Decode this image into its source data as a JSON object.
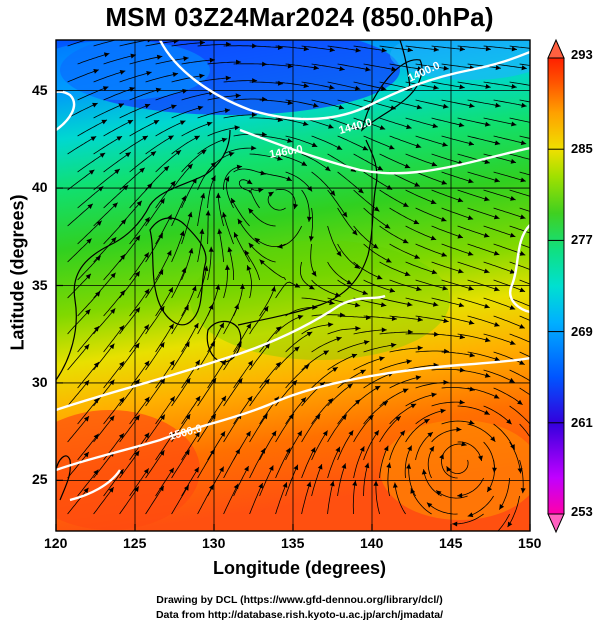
{
  "title": "MSM 03Z24Mar2024 (850.0hPa)",
  "xlabel": "Longitude (degrees)",
  "ylabel": "Latitude  (degrees)",
  "credits": {
    "line1": "Drawing by DCL (https://www.gfd-dennou.org/library/dcl/)",
    "line2": "Data from http://database.rish.kyoto-u.ac.jp/arch/jmadata/"
  },
  "map_data": {
    "type": "streamline-temperature-map",
    "lon_range": [
      120,
      150
    ],
    "lat_range": [
      22.4,
      47.6
    ],
    "lon_ticks": [
      "120",
      "125",
      "130",
      "135",
      "140",
      "145",
      "150"
    ],
    "lat_ticks": [
      "25",
      "30",
      "35",
      "40",
      "45"
    ],
    "colorbar": {
      "min": 253,
      "max": 293,
      "tick_labels": [
        "293",
        "285",
        "277",
        "269",
        "261",
        "253"
      ],
      "colors": [
        "#ff00aa",
        "#c000ff",
        "#3300dd",
        "#0055ff",
        "#00b0ff",
        "#00e0d0",
        "#10e080",
        "#40d020",
        "#a0e000",
        "#f0e000",
        "#ffa000",
        "#ff5000",
        "#ff2000"
      ]
    },
    "contour_labels": [
      "1400.0",
      "1460.0",
      "1500.0",
      "1440.0",
      "1480.0",
      "1460.0"
    ],
    "low_centers": [
      {
        "lon": 145.5,
        "lat": 26.0
      },
      {
        "lon": 131.5,
        "lat": 40.5
      },
      {
        "lon": 134.5,
        "lat": 39.5
      }
    ]
  }
}
